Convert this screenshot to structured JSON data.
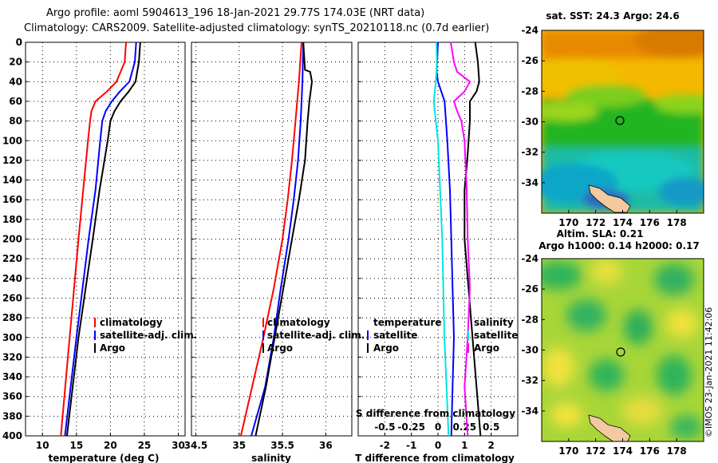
{
  "header": {
    "line1": "Argo profile: aoml 5904613_196 18-Jan-2021 29.77S 174.03E (NRT data)",
    "line2": "Climatology: CARS2009. Satellite-adjusted climatology: synTS_20210118.nc (0.7d earlier)"
  },
  "colors": {
    "climatology": "#ff0000",
    "satellite": "#0000ff",
    "argo": "#000000",
    "sat_diff": "#00e5e5",
    "sal_diff": "#ff00ff"
  },
  "chart_data": [
    {
      "id": "temperature",
      "type": "line",
      "xlabel": "temperature (deg C)",
      "ylabel": "",
      "xlim": [
        7.5,
        31
      ],
      "ylim": [
        400,
        0
      ],
      "xticks": [
        "10",
        "15",
        "20",
        "25",
        "30"
      ],
      "yticks": [
        "0",
        "20",
        "40",
        "60",
        "80",
        "100",
        "120",
        "140",
        "160",
        "180",
        "200",
        "220",
        "240",
        "260",
        "280",
        "300",
        "320",
        "340",
        "360",
        "380",
        "400"
      ],
      "legend": [
        "climatology",
        "satellite-adj. clim.",
        "Argo"
      ],
      "series": [
        {
          "name": "climatology",
          "depth": [
            0,
            20,
            40,
            50,
            60,
            70,
            80,
            100,
            150,
            200,
            300,
            400
          ],
          "values": [
            22.3,
            22.1,
            20.9,
            19.5,
            17.8,
            17.2,
            17.0,
            16.7,
            16.0,
            15.3,
            14.0,
            12.7
          ]
        },
        {
          "name": "satellite-adj. clim.",
          "depth": [
            0,
            20,
            40,
            50,
            60,
            70,
            80,
            100,
            150,
            200,
            300,
            400
          ],
          "values": [
            23.8,
            23.6,
            22.8,
            21.4,
            20.2,
            19.3,
            18.8,
            18.5,
            17.8,
            16.8,
            15.0,
            13.3
          ]
        },
        {
          "name": "Argo",
          "depth": [
            0,
            20,
            40,
            50,
            60,
            70,
            80,
            100,
            150,
            200,
            300,
            400
          ],
          "values": [
            24.4,
            24.2,
            23.7,
            22.7,
            21.5,
            20.6,
            20.0,
            19.6,
            18.4,
            17.4,
            15.3,
            13.6
          ]
        }
      ]
    },
    {
      "id": "salinity",
      "type": "line",
      "xlabel": "salinity",
      "ylabel": "",
      "xlim": [
        34.45,
        36.3
      ],
      "ylim": [
        400,
        0
      ],
      "xticks": [
        "34.5",
        "35",
        "35.5",
        "36"
      ],
      "legend": [
        "climatology",
        "satellite-adj. clim.",
        "Argo"
      ],
      "series": [
        {
          "name": "climatology",
          "depth": [
            0,
            40,
            80,
            120,
            160,
            200,
            250,
            300,
            350,
            400
          ],
          "values": [
            35.72,
            35.69,
            35.65,
            35.61,
            35.56,
            35.5,
            35.4,
            35.28,
            35.15,
            35.02
          ]
        },
        {
          "name": "satellite-adj. clim.",
          "depth": [
            0,
            40,
            80,
            120,
            160,
            200,
            250,
            300,
            350,
            400
          ],
          "values": [
            35.74,
            35.73,
            35.71,
            35.68,
            35.63,
            35.57,
            35.48,
            35.4,
            35.3,
            35.14
          ]
        },
        {
          "name": "Argo",
          "depth": [
            0,
            28,
            30,
            40,
            60,
            80,
            120,
            160,
            200,
            250,
            300,
            350,
            400
          ],
          "values": [
            35.74,
            35.76,
            35.82,
            35.84,
            35.81,
            35.79,
            35.76,
            35.69,
            35.61,
            35.51,
            35.41,
            35.31,
            35.19
          ]
        }
      ]
    },
    {
      "id": "differences",
      "type": "line",
      "xlabel": "T difference from climatology",
      "top_axis_label": "S difference from climatology",
      "xlim": [
        -3,
        3
      ],
      "ylim": [
        400,
        0
      ],
      "xticks": [
        "-2",
        "-1",
        "0",
        "1",
        "2"
      ],
      "top_ticks": [
        "-0.5",
        "-0.25",
        "0",
        "0.25",
        "0.5"
      ],
      "legend_left_title": "temperature",
      "legend_right_title": "salinity",
      "legend": [
        "satellite",
        "Argo",
        "satellite",
        "Argo"
      ],
      "series": [
        {
          "name": "T satellite",
          "depth": [
            0,
            30,
            40,
            60,
            80,
            100,
            150,
            200,
            250,
            300,
            350,
            400
          ],
          "values": [
            0.0,
            -0.05,
            0.0,
            0.25,
            0.3,
            0.35,
            0.45,
            0.5,
            0.55,
            0.6,
            0.55,
            0.5
          ]
        },
        {
          "name": "T Argo",
          "depth": [
            0,
            20,
            40,
            50,
            60,
            80,
            120,
            150,
            200,
            250,
            300,
            350,
            400
          ],
          "values": [
            1.4,
            1.5,
            1.55,
            1.45,
            1.2,
            1.2,
            1.1,
            1.0,
            1.0,
            1.15,
            1.3,
            1.45,
            1.6
          ]
        },
        {
          "name": "S satellite",
          "depth": [
            0,
            20,
            40,
            60,
            80,
            100,
            150,
            200,
            250,
            300,
            350,
            400
          ],
          "values": [
            -0.015,
            -0.01,
            -0.02,
            -0.04,
            -0.02,
            0.0,
            0.02,
            0.04,
            0.05,
            0.06,
            0.08,
            0.1
          ]
        },
        {
          "name": "S Argo",
          "depth": [
            0,
            20,
            30,
            40,
            50,
            60,
            70,
            80,
            100,
            150,
            200,
            250,
            300,
            350,
            400
          ],
          "values": [
            0.12,
            0.15,
            0.18,
            0.3,
            0.25,
            0.15,
            0.18,
            0.22,
            0.25,
            0.27,
            0.28,
            0.3,
            0.28,
            0.25,
            0.28
          ]
        }
      ]
    },
    {
      "id": "sst-map",
      "type": "heatmap",
      "title": "sat. SST: 24.3 Argo: 24.6",
      "xlim": [
        168,
        180
      ],
      "ylim": [
        -36,
        -24
      ],
      "xticks": [
        "170",
        "172",
        "174",
        "176",
        "178"
      ],
      "yticks": [
        "-24",
        "-26",
        "-28",
        "-30",
        "-32",
        "-34"
      ],
      "argo_position": [
        174.03,
        -29.77
      ]
    },
    {
      "id": "sla-map",
      "type": "heatmap",
      "title_line1": "Altim. SLA: 0.21",
      "title_line2": "Argo h1000: 0.14 h2000: 0.17",
      "xlim": [
        168,
        180
      ],
      "ylim": [
        -36,
        -24
      ],
      "xticks": [
        "170",
        "172",
        "174",
        "176",
        "178"
      ],
      "yticks": [
        "-24",
        "-26",
        "-28",
        "-30",
        "-32",
        "-34"
      ],
      "argo_position": [
        174.03,
        -29.77
      ]
    }
  ],
  "footer": {
    "credit": "©IMOS 23-Jan-2021 11:42:06"
  }
}
